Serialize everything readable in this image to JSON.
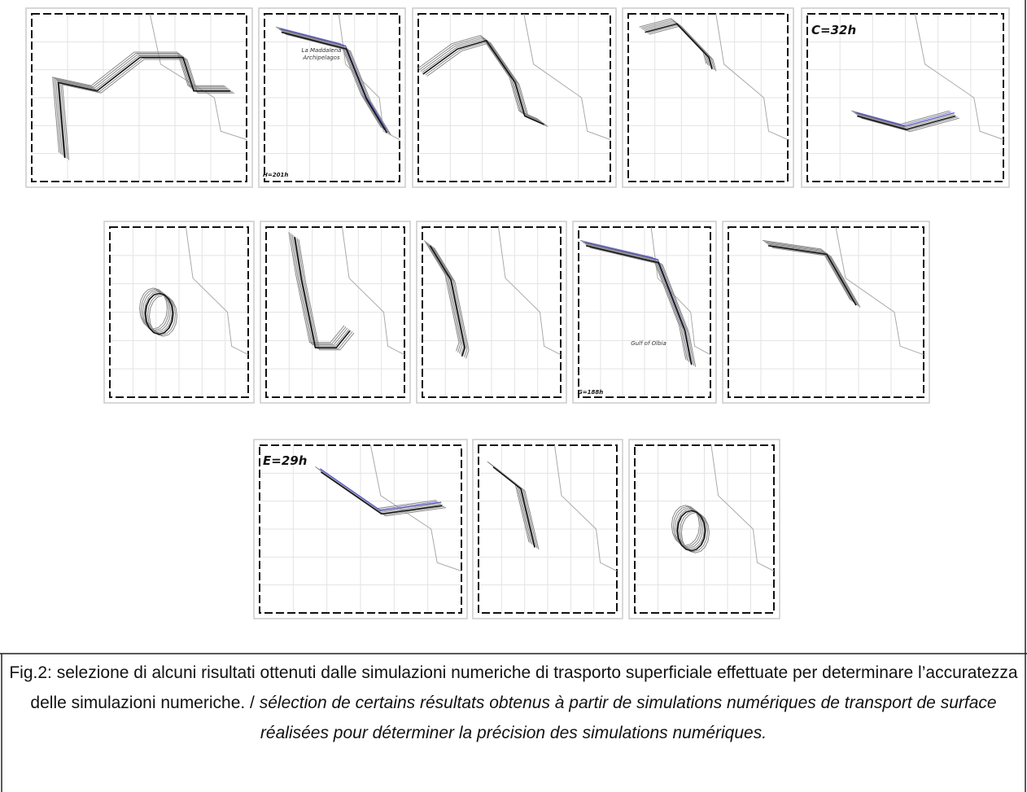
{
  "figure": {
    "panel_labels": [
      "H=201h",
      "C=32h",
      "G=188h",
      "E=29h"
    ],
    "place_names": [
      "La Maddalena Archipelagos",
      "Gulf of Olbia"
    ],
    "caption": {
      "text": "Fig.2: selezione di alcuni risultati ottenuti dalle simulazioni numeriche di trasporto superficiale effettuate per determinare l’accuratezza delle simulazioni numeriche. /",
      "translation": "sélection de certains résultats obtenus à partir de simulations numériques de transport de surface réalisées pour déterminer la précision des simulations numériques."
    }
  }
}
